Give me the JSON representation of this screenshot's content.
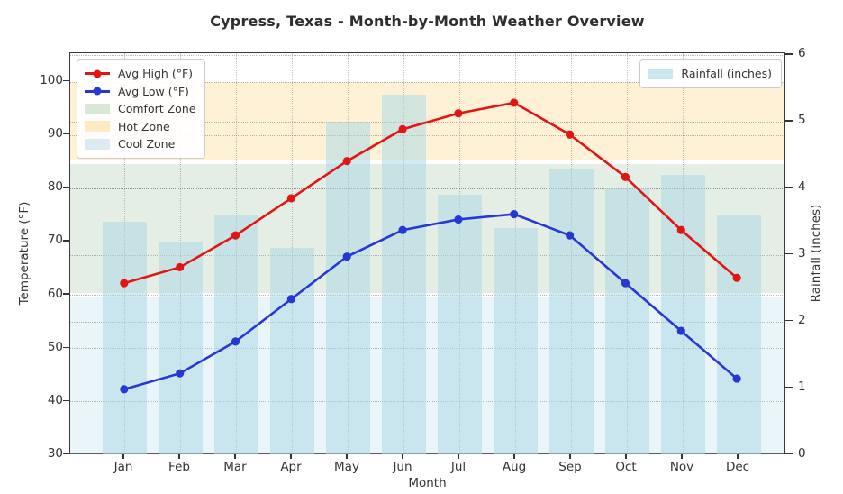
{
  "title": "Cypress, Texas - Month-by-Month Weather Overview",
  "chart_data": {
    "type": "combo-line-bar",
    "categories": [
      "Jan",
      "Feb",
      "Mar",
      "Apr",
      "May",
      "Jun",
      "Jul",
      "Aug",
      "Sep",
      "Oct",
      "Nov",
      "Dec"
    ],
    "series": [
      {
        "name": "Avg High (°F)",
        "type": "line",
        "axis": "temp",
        "color": "#e21414",
        "values": [
          62,
          65,
          71,
          78,
          85,
          91,
          94,
          96,
          90,
          82,
          72,
          63
        ]
      },
      {
        "name": "Avg Low (°F)",
        "type": "line",
        "axis": "temp",
        "color": "#2638d4",
        "values": [
          42,
          45,
          51,
          59,
          67,
          72,
          74,
          75,
          71,
          62,
          53,
          44
        ]
      },
      {
        "name": "Rainfall (inches)",
        "type": "bar",
        "axis": "rain",
        "color": "rgba(173,216,230,0.55)",
        "values": [
          3.5,
          3.2,
          3.6,
          3.1,
          5.0,
          5.4,
          3.9,
          3.4,
          4.3,
          4.0,
          4.2,
          3.6
        ]
      }
    ],
    "zones": [
      {
        "name": "Hot Zone",
        "from": 85.4,
        "to": 100,
        "color": "rgba(255,165,0,0.16)"
      },
      {
        "name": "Comfort Zone",
        "from": 60.4,
        "to": 84.6,
        "color": "rgba(46,125,50,0.13)"
      },
      {
        "name": "Cool Zone",
        "from": 30,
        "to": 59.6,
        "color": "rgba(173,216,230,0.25)"
      }
    ],
    "xlabel": "Month",
    "ylabel_left": "Temperature (°F)",
    "ylabel_right": "Rainfall (inches)",
    "temp_axis": {
      "min": 30,
      "max": 105,
      "ticks": [
        30,
        40,
        50,
        60,
        70,
        80,
        90,
        100
      ]
    },
    "rain_axis": {
      "min": 0,
      "max": 6,
      "ticks": [
        0,
        1,
        2,
        3,
        4,
        5,
        6
      ]
    },
    "grid": true,
    "legend_main": {
      "position": "upper-left",
      "items": [
        {
          "label": "Avg High (°F)",
          "marker": "line-dot",
          "color": "#e21414"
        },
        {
          "label": "Avg Low (°F)",
          "marker": "line-dot",
          "color": "#2638d4"
        },
        {
          "label": "Comfort Zone",
          "marker": "patch",
          "color": "rgba(46,125,50,0.18)"
        },
        {
          "label": "Hot Zone",
          "marker": "patch",
          "color": "rgba(255,165,0,0.22)"
        },
        {
          "label": "Cool Zone",
          "marker": "patch",
          "color": "rgba(173,216,230,0.45)"
        }
      ]
    },
    "legend_rain": {
      "position": "upper-right",
      "items": [
        {
          "label": "Rainfall (inches)",
          "marker": "patch",
          "color": "rgba(173,216,230,0.65)"
        }
      ]
    }
  }
}
